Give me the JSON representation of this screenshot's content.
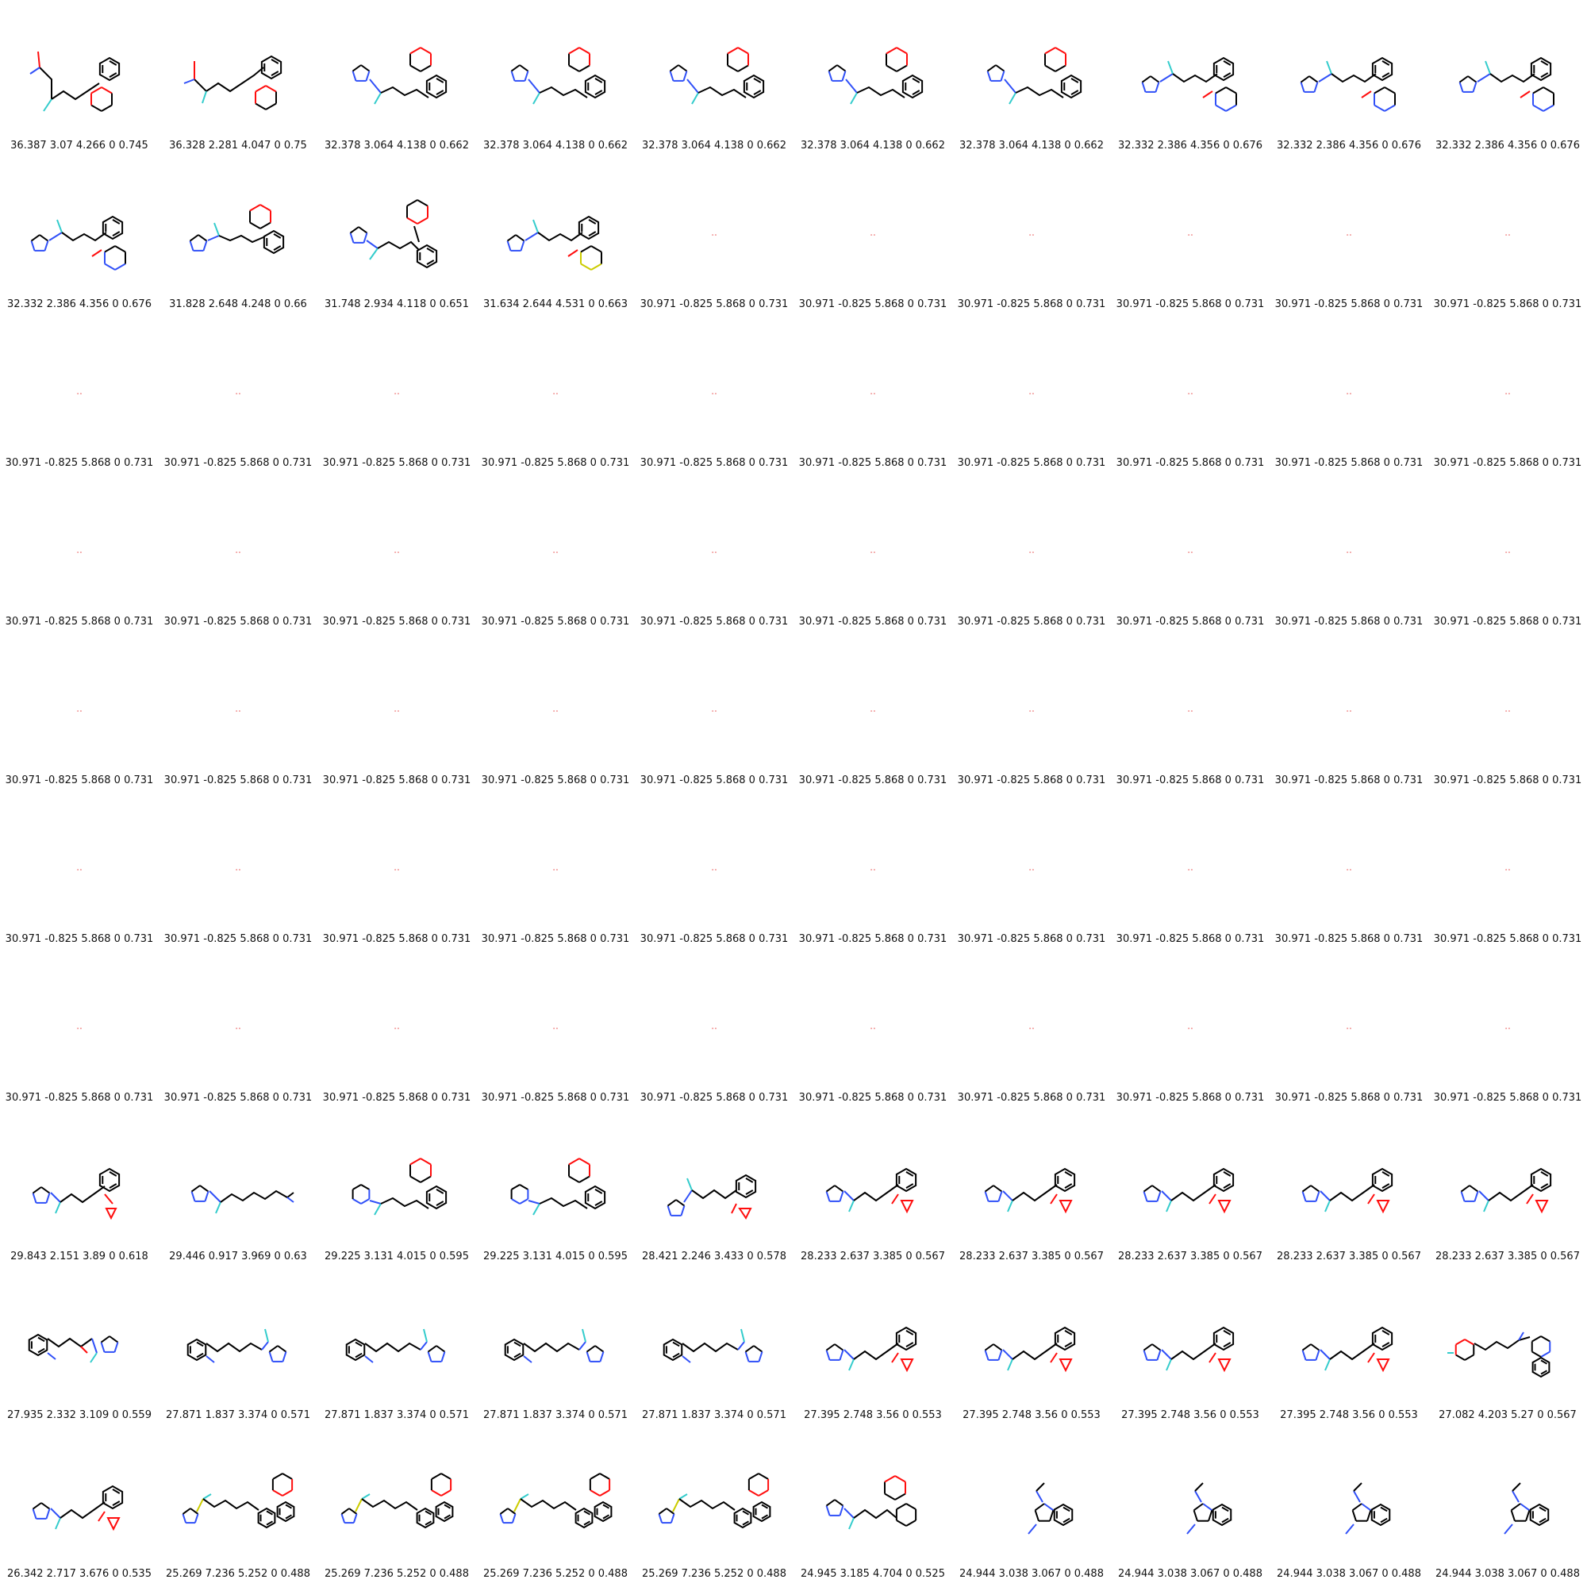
{
  "grid": {
    "columns": 10,
    "rows": 10,
    "colors": {
      "bond": "#000000",
      "oxygen": "#ff0d0d",
      "nitrogen": "#3050f8",
      "fluorine": "#33cccc",
      "sulfur": "#cccc00",
      "empty_mark": "#e85050"
    },
    "cells": [
      {
        "label": "36.387 3.07 4.266 0 0.745",
        "mol": "m1"
      },
      {
        "label": "36.328 2.281 4.047 0 0.75",
        "mol": "m2"
      },
      {
        "label": "32.378 3.064 4.138 0 0.662",
        "mol": "m3"
      },
      {
        "label": "32.378 3.064 4.138 0 0.662",
        "mol": "m3"
      },
      {
        "label": "32.378 3.064 4.138 0 0.662",
        "mol": "m3"
      },
      {
        "label": "32.378 3.064 4.138 0 0.662",
        "mol": "m3"
      },
      {
        "label": "32.378 3.064 4.138 0 0.662",
        "mol": "m3"
      },
      {
        "label": "32.332 2.386 4.356 0 0.676",
        "mol": "m4"
      },
      {
        "label": "32.332 2.386 4.356 0 0.676",
        "mol": "m4"
      },
      {
        "label": "32.332 2.386 4.356 0 0.676",
        "mol": "m4"
      },
      {
        "label": "32.332 2.386 4.356 0 0.676",
        "mol": "m4"
      },
      {
        "label": "31.828 2.648 4.248 0 0.66",
        "mol": "m5"
      },
      {
        "label": "31.748 2.934 4.118 0 0.651",
        "mol": "m6"
      },
      {
        "label": "31.634 2.644 4.531 0 0.663",
        "mol": "m7"
      },
      {
        "label": "30.971 -0.825 5.868 0 0.731",
        "mol": "empty"
      },
      {
        "label": "30.971 -0.825 5.868 0 0.731",
        "mol": "empty"
      },
      {
        "label": "30.971 -0.825 5.868 0 0.731",
        "mol": "empty"
      },
      {
        "label": "30.971 -0.825 5.868 0 0.731",
        "mol": "empty"
      },
      {
        "label": "30.971 -0.825 5.868 0 0.731",
        "mol": "empty"
      },
      {
        "label": "30.971 -0.825 5.868 0 0.731",
        "mol": "empty"
      },
      {
        "label": "30.971 -0.825 5.868 0 0.731",
        "mol": "empty"
      },
      {
        "label": "30.971 -0.825 5.868 0 0.731",
        "mol": "empty"
      },
      {
        "label": "30.971 -0.825 5.868 0 0.731",
        "mol": "empty"
      },
      {
        "label": "30.971 -0.825 5.868 0 0.731",
        "mol": "empty"
      },
      {
        "label": "30.971 -0.825 5.868 0 0.731",
        "mol": "empty"
      },
      {
        "label": "30.971 -0.825 5.868 0 0.731",
        "mol": "empty"
      },
      {
        "label": "30.971 -0.825 5.868 0 0.731",
        "mol": "empty"
      },
      {
        "label": "30.971 -0.825 5.868 0 0.731",
        "mol": "empty"
      },
      {
        "label": "30.971 -0.825 5.868 0 0.731",
        "mol": "empty"
      },
      {
        "label": "30.971 -0.825 5.868 0 0.731",
        "mol": "empty"
      },
      {
        "label": "30.971 -0.825 5.868 0 0.731",
        "mol": "empty"
      },
      {
        "label": "30.971 -0.825 5.868 0 0.731",
        "mol": "empty"
      },
      {
        "label": "30.971 -0.825 5.868 0 0.731",
        "mol": "empty"
      },
      {
        "label": "30.971 -0.825 5.868 0 0.731",
        "mol": "empty"
      },
      {
        "label": "30.971 -0.825 5.868 0 0.731",
        "mol": "empty"
      },
      {
        "label": "30.971 -0.825 5.868 0 0.731",
        "mol": "empty"
      },
      {
        "label": "30.971 -0.825 5.868 0 0.731",
        "mol": "empty"
      },
      {
        "label": "30.971 -0.825 5.868 0 0.731",
        "mol": "empty"
      },
      {
        "label": "30.971 -0.825 5.868 0 0.731",
        "mol": "empty"
      },
      {
        "label": "30.971 -0.825 5.868 0 0.731",
        "mol": "empty"
      },
      {
        "label": "30.971 -0.825 5.868 0 0.731",
        "mol": "empty"
      },
      {
        "label": "30.971 -0.825 5.868 0 0.731",
        "mol": "empty"
      },
      {
        "label": "30.971 -0.825 5.868 0 0.731",
        "mol": "empty"
      },
      {
        "label": "30.971 -0.825 5.868 0 0.731",
        "mol": "empty"
      },
      {
        "label": "30.971 -0.825 5.868 0 0.731",
        "mol": "empty"
      },
      {
        "label": "30.971 -0.825 5.868 0 0.731",
        "mol": "empty"
      },
      {
        "label": "30.971 -0.825 5.868 0 0.731",
        "mol": "empty"
      },
      {
        "label": "30.971 -0.825 5.868 0 0.731",
        "mol": "empty"
      },
      {
        "label": "30.971 -0.825 5.868 0 0.731",
        "mol": "empty"
      },
      {
        "label": "30.971 -0.825 5.868 0 0.731",
        "mol": "empty"
      },
      {
        "label": "30.971 -0.825 5.868 0 0.731",
        "mol": "empty"
      },
      {
        "label": "30.971 -0.825 5.868 0 0.731",
        "mol": "empty"
      },
      {
        "label": "30.971 -0.825 5.868 0 0.731",
        "mol": "empty"
      },
      {
        "label": "30.971 -0.825 5.868 0 0.731",
        "mol": "empty"
      },
      {
        "label": "30.971 -0.825 5.868 0 0.731",
        "mol": "empty"
      },
      {
        "label": "30.971 -0.825 5.868 0 0.731",
        "mol": "empty"
      },
      {
        "label": "30.971 -0.825 5.868 0 0.731",
        "mol": "empty"
      },
      {
        "label": "30.971 -0.825 5.868 0 0.731",
        "mol": "empty"
      },
      {
        "label": "30.971 -0.825 5.868 0 0.731",
        "mol": "empty"
      },
      {
        "label": "30.971 -0.825 5.868 0 0.731",
        "mol": "empty"
      },
      {
        "label": "30.971 -0.825 5.868 0 0.731",
        "mol": "empty"
      },
      {
        "label": "30.971 -0.825 5.868 0 0.731",
        "mol": "empty"
      },
      {
        "label": "30.971 -0.825 5.868 0 0.731",
        "mol": "empty"
      },
      {
        "label": "30.971 -0.825 5.868 0 0.731",
        "mol": "empty"
      },
      {
        "label": "30.971 -0.825 5.868 0 0.731",
        "mol": "empty"
      },
      {
        "label": "30.971 -0.825 5.868 0 0.731",
        "mol": "empty"
      },
      {
        "label": "30.971 -0.825 5.868 0 0.731",
        "mol": "empty"
      },
      {
        "label": "30.971 -0.825 5.868 0 0.731",
        "mol": "empty"
      },
      {
        "label": "30.971 -0.825 5.868 0 0.731",
        "mol": "empty"
      },
      {
        "label": "30.971 -0.825 5.868 0 0.731",
        "mol": "empty"
      },
      {
        "label": "29.843 2.151 3.89 0 0.618",
        "mol": "m8"
      },
      {
        "label": "29.446 0.917 3.969 0 0.63",
        "mol": "m9"
      },
      {
        "label": "29.225 3.131 4.015 0 0.595",
        "mol": "m10"
      },
      {
        "label": "29.225 3.131 4.015 0 0.595",
        "mol": "m10"
      },
      {
        "label": "28.421 2.246 3.433 0 0.578",
        "mol": "m11"
      },
      {
        "label": "28.233 2.637 3.385 0 0.567",
        "mol": "m12"
      },
      {
        "label": "28.233 2.637 3.385 0 0.567",
        "mol": "m12"
      },
      {
        "label": "28.233 2.637 3.385 0 0.567",
        "mol": "m12"
      },
      {
        "label": "28.233 2.637 3.385 0 0.567",
        "mol": "m12"
      },
      {
        "label": "28.233 2.637 3.385 0 0.567",
        "mol": "m12"
      },
      {
        "label": "27.935 2.332 3.109 0 0.559",
        "mol": "m13"
      },
      {
        "label": "27.871 1.837 3.374 0 0.571",
        "mol": "m14"
      },
      {
        "label": "27.871 1.837 3.374 0 0.571",
        "mol": "m14"
      },
      {
        "label": "27.871 1.837 3.374 0 0.571",
        "mol": "m14"
      },
      {
        "label": "27.871 1.837 3.374 0 0.571",
        "mol": "m14"
      },
      {
        "label": "27.395 2.748 3.56 0 0.553",
        "mol": "m12"
      },
      {
        "label": "27.395 2.748 3.56 0 0.553",
        "mol": "m12"
      },
      {
        "label": "27.395 2.748 3.56 0 0.553",
        "mol": "m12"
      },
      {
        "label": "27.395 2.748 3.56 0 0.553",
        "mol": "m12"
      },
      {
        "label": "27.082 4.203 5.27 0 0.567",
        "mol": "m15"
      },
      {
        "label": "26.342 2.717 3.676 0 0.535",
        "mol": "m16"
      },
      {
        "label": "25.269 7.236 5.252 0 0.488",
        "mol": "m17"
      },
      {
        "label": "25.269 7.236 5.252 0 0.488",
        "mol": "m17"
      },
      {
        "label": "25.269 7.236 5.252 0 0.488",
        "mol": "m17"
      },
      {
        "label": "25.269 7.236 5.252 0 0.488",
        "mol": "m17"
      },
      {
        "label": "24.945 3.185 4.704 0 0.525",
        "mol": "m18"
      },
      {
        "label": "24.944 3.038 3.067 0 0.488",
        "mol": "m19"
      },
      {
        "label": "24.944 3.038 3.067 0 0.488",
        "mol": "m19"
      },
      {
        "label": "24.944 3.038 3.067 0 0.488",
        "mol": "m19"
      },
      {
        "label": "24.944 3.038 3.067 0 0.488",
        "mol": "m19"
      }
    ]
  }
}
